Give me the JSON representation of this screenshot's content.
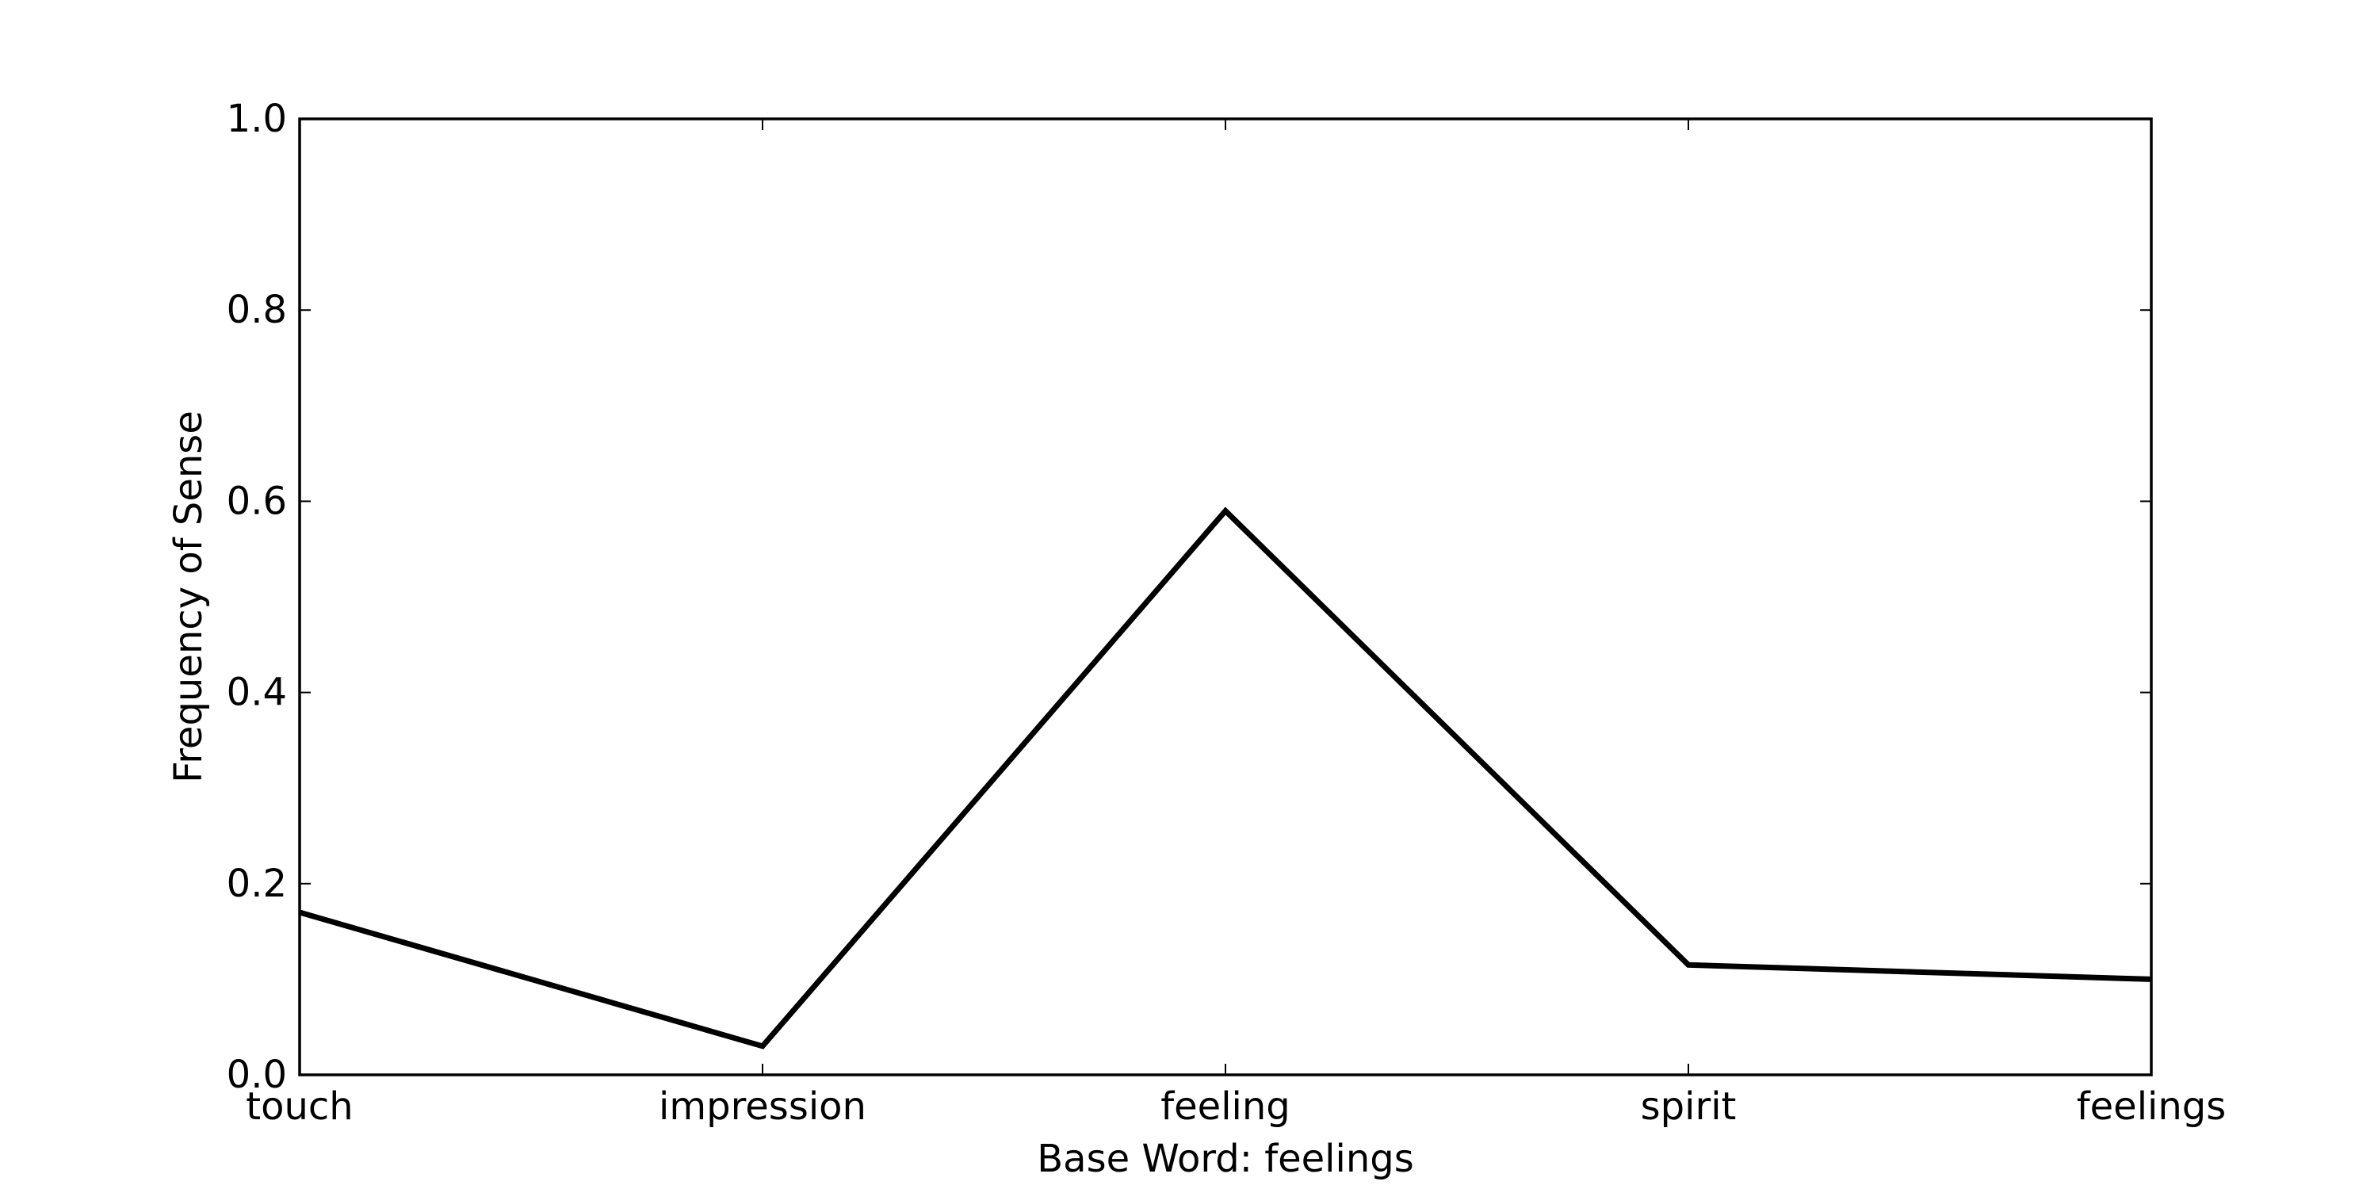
{
  "chart_data": {
    "type": "line",
    "title": "",
    "xlabel": "Base Word: feelings",
    "ylabel": "Frequency of Sense",
    "categories": [
      "touch",
      "impression",
      "feeling",
      "spirit",
      "feelings"
    ],
    "series": [
      {
        "values": [
          0.17,
          0.03,
          0.59,
          0.115,
          0.1
        ],
        "color": "#000000"
      }
    ],
    "ylim": [
      0.0,
      1.0
    ],
    "yticks": [
      "0.0",
      "0.2",
      "0.4",
      "0.6",
      "0.8",
      "1.0"
    ],
    "grid": false
  }
}
